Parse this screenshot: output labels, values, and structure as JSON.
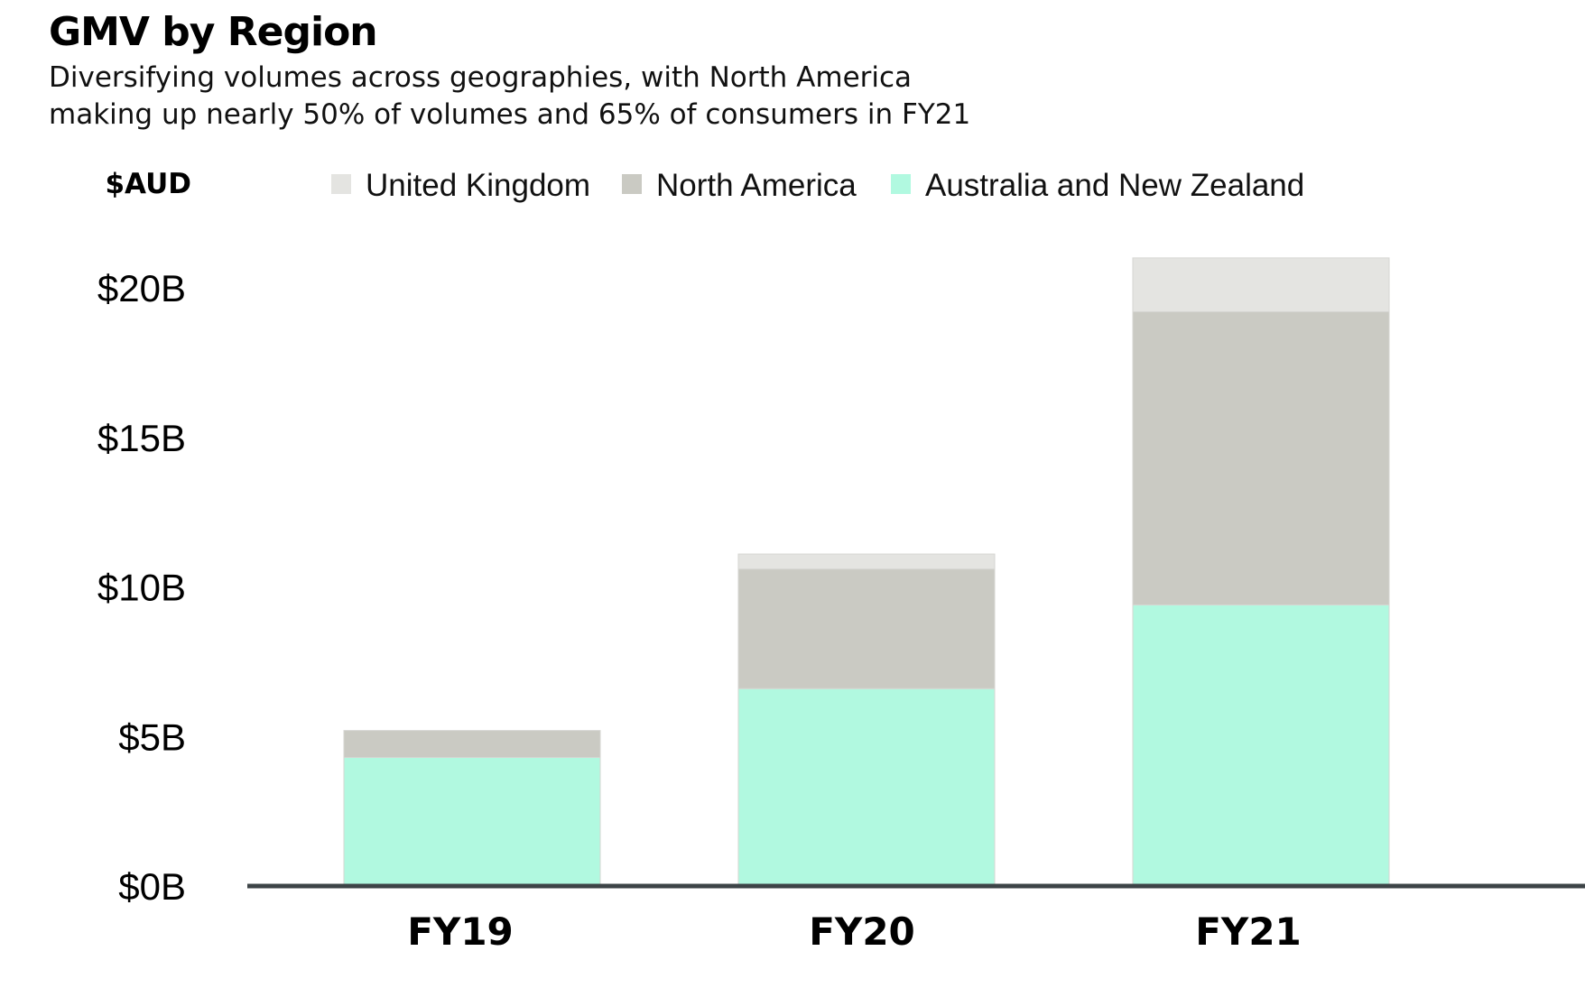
{
  "chart_data": {
    "type": "bar",
    "stacked": true,
    "title": "GMV by Region",
    "subtitle_lines": [
      "Diversifying volumes across geographies, with North America",
      "making up nearly 50% of volumes and 65% of consumers in FY21"
    ],
    "unit_label": "$AUD",
    "categories": [
      "FY19",
      "FY20",
      "FY21"
    ],
    "series": [
      {
        "name": "Australia and New Zealand",
        "color": "#b1f9e0",
        "values": [
          4.3,
          6.6,
          9.4
        ]
      },
      {
        "name": "North America",
        "color": "#cacac3",
        "values": [
          0.9,
          4.0,
          9.8
        ]
      },
      {
        "name": "United Kingdom",
        "color": "#e4e4e1",
        "values": [
          0.0,
          0.5,
          1.8
        ]
      }
    ],
    "legend_order": [
      "United Kingdom",
      "North America",
      "Australia and New Zealand"
    ],
    "legend_position": "top",
    "yticks": [
      0,
      5,
      10,
      15,
      20
    ],
    "ytick_labels": [
      "$0B",
      "$5B",
      "$10B",
      "$15B",
      "$20B"
    ],
    "ylim": [
      0,
      21
    ],
    "grid": false,
    "axis_color": "#3d4447"
  }
}
